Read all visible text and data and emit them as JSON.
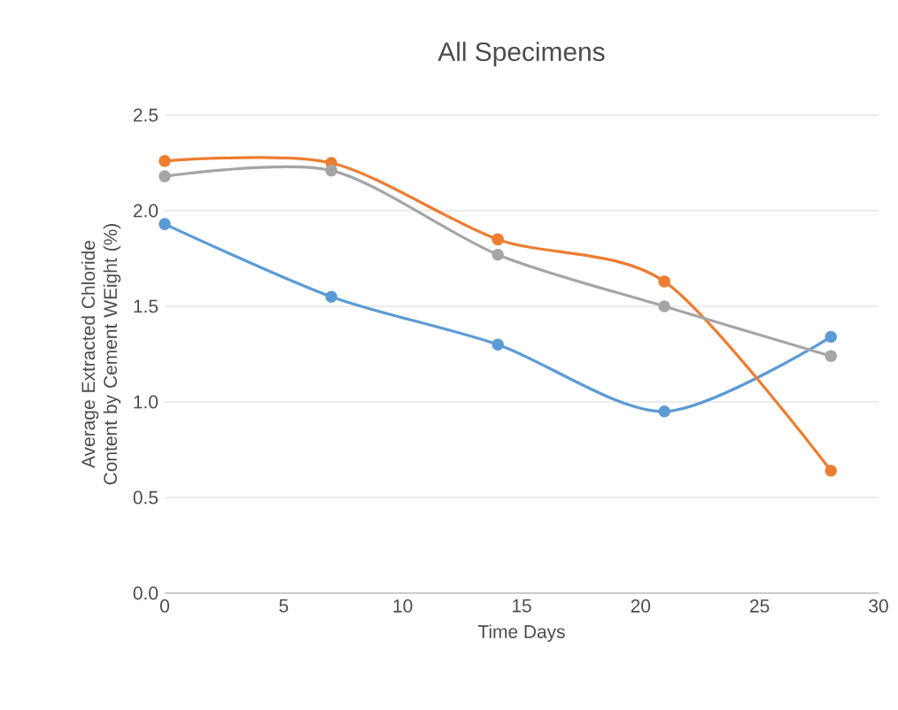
{
  "chart_data": {
    "type": "line",
    "title": "All Specimens",
    "xlabel": "Time Days",
    "ylabel": "Average Extracted Chloride Content by Cement WEight (%)",
    "x": [
      0,
      7,
      14,
      21,
      28
    ],
    "series": [
      {
        "color": "#5b9bd5",
        "values": [
          1.93,
          1.55,
          1.3,
          0.95,
          1.34
        ]
      },
      {
        "color": "#ed7d31",
        "values": [
          2.26,
          2.25,
          1.85,
          1.63,
          0.64
        ]
      },
      {
        "color": "#a5a5a5",
        "values": [
          2.18,
          2.21,
          1.77,
          1.5,
          1.24
        ]
      }
    ],
    "xlim": [
      0,
      30
    ],
    "xticks": [
      0,
      5,
      10,
      15,
      20,
      25,
      30
    ],
    "ylim": [
      0,
      2.5
    ],
    "yticks": [
      {
        "value": 0,
        "label": "0.0"
      },
      {
        "value": 0.5,
        "label": "0.5"
      },
      {
        "value": 1,
        "label": "1.0"
      },
      {
        "value": 1.5,
        "label": "1.5"
      },
      {
        "value": 2,
        "label": "2.0"
      },
      {
        "value": 2.5,
        "label": "2.5"
      }
    ],
    "grid": "y",
    "marker": "circle",
    "line_style": "solid",
    "legend": false
  }
}
